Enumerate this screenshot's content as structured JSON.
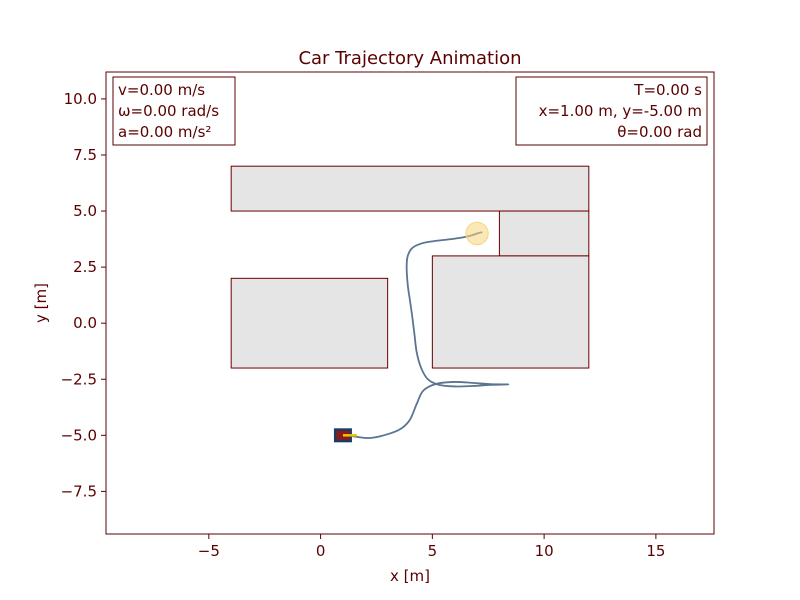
{
  "chart_data": {
    "type": "line",
    "title": "Car Trajectory Animation",
    "xlabel": "x [m]",
    "ylabel": "y [m]",
    "xlim": [
      -9.6,
      17.6
    ],
    "ylim": [
      -9.4,
      11.2
    ],
    "xticks": [
      -5,
      0,
      5,
      10,
      15
    ],
    "xtick_labels": [
      "−5",
      "0",
      "5",
      "10",
      "15"
    ],
    "yticks": [
      -7.5,
      -5.0,
      -2.5,
      0.0,
      2.5,
      5.0,
      7.5,
      10.0
    ],
    "ytick_labels": [
      "−7.5",
      "−5.0",
      "−2.5",
      "0.0",
      "2.5",
      "5.0",
      "7.5",
      "10.0"
    ],
    "grid": false,
    "obstacles": [
      {
        "x0": -4,
        "y0": 5,
        "x1": 12,
        "y1": 7
      },
      {
        "x0": 8,
        "y0": 3,
        "x1": 12,
        "y1": 5
      },
      {
        "x0": 5,
        "y0": -2,
        "x1": 12,
        "y1": 3
      },
      {
        "x0": -4,
        "y0": -2,
        "x1": 3,
        "y1": 2
      }
    ],
    "goal": {
      "x": 7.0,
      "y": 4.0,
      "radius": 0.5
    },
    "car": {
      "x": 1.0,
      "y": -5.0,
      "theta": 0.0
    },
    "series": [
      {
        "x": [
          1.0,
          1.5,
          2.2,
          3.0,
          3.6,
          4.0,
          4.3,
          4.6,
          5.2,
          6.0,
          6.8,
          7.6,
          8.4,
          7.6,
          6.8,
          6.0,
          5.3,
          4.8,
          4.5,
          4.3,
          4.2,
          4.1,
          4.0,
          3.9,
          3.85,
          3.9,
          4.1,
          4.5,
          5.0,
          5.6,
          6.2,
          6.7,
          7.0,
          7.2
        ],
        "y": [
          -5.0,
          -5.05,
          -5.12,
          -4.95,
          -4.7,
          -4.3,
          -3.6,
          -3.0,
          -2.7,
          -2.62,
          -2.66,
          -2.72,
          -2.73,
          -2.75,
          -2.8,
          -2.82,
          -2.75,
          -2.5,
          -2.0,
          -1.3,
          -0.5,
          0.3,
          1.0,
          1.7,
          2.5,
          3.0,
          3.35,
          3.55,
          3.65,
          3.72,
          3.8,
          3.9,
          4.0,
          4.05
        ]
      }
    ],
    "colors": {
      "text": "#5a0000",
      "frame": "#5a0000",
      "obstacle_fill": "#e5e5e5",
      "obstacle_edge": "#6b0000",
      "trajectory": "#5b7590",
      "goal": "#f5d67a",
      "car_body": "#8b1a1a",
      "car_outline": "#1e3a64",
      "heading": "#f2c200"
    }
  },
  "info_left": {
    "line1": "v=0.00 m/s",
    "line2": "ω=0.00 rad/s",
    "line3": "a=0.00 m/s²"
  },
  "info_right": {
    "line1": "T=0.00 s",
    "line2": "x=1.00 m, y=-5.00 m",
    "line3": "θ=0.00 rad"
  }
}
